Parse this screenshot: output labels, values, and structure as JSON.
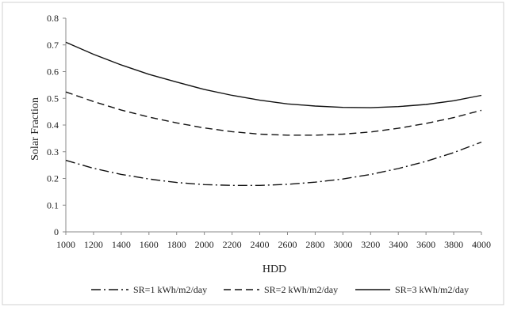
{
  "chart_data": {
    "type": "line",
    "xlabel": "HDD",
    "ylabel": "Solar Fraction",
    "xlim": [
      1000,
      4000
    ],
    "ylim": [
      0,
      0.8
    ],
    "x_ticks": [
      1000,
      1200,
      1400,
      1600,
      1800,
      2000,
      2200,
      2400,
      2600,
      2800,
      3000,
      3200,
      3400,
      3600,
      3800,
      4000
    ],
    "y_ticks": [
      0,
      0.1,
      0.2,
      0.3,
      0.4,
      0.5,
      0.6,
      0.7,
      0.8
    ],
    "grid": false,
    "legend": "bottom",
    "series": [
      {
        "name": "SR=1 kWh/m2/day",
        "style": "dashdot",
        "x": [
          1000,
          1200,
          1400,
          1600,
          1800,
          2000,
          2200,
          2400,
          2600,
          2800,
          3000,
          3200,
          3400,
          3600,
          3800,
          4000
        ],
        "y": [
          0.268,
          0.238,
          0.215,
          0.198,
          0.185,
          0.177,
          0.174,
          0.174,
          0.178,
          0.186,
          0.198,
          0.215,
          0.237,
          0.264,
          0.297,
          0.336
        ]
      },
      {
        "name": "SR=2 kWh/m2/day",
        "style": "dashed",
        "x": [
          1000,
          1200,
          1400,
          1600,
          1800,
          2000,
          2200,
          2400,
          2600,
          2800,
          3000,
          3200,
          3400,
          3600,
          3800,
          4000
        ],
        "y": [
          0.524,
          0.488,
          0.456,
          0.43,
          0.408,
          0.389,
          0.375,
          0.366,
          0.362,
          0.362,
          0.366,
          0.374,
          0.388,
          0.406,
          0.428,
          0.455
        ]
      },
      {
        "name": "SR=3 kWh/m2/day",
        "style": "solid",
        "x": [
          1000,
          1200,
          1400,
          1600,
          1800,
          2000,
          2200,
          2400,
          2600,
          2800,
          3000,
          3200,
          3400,
          3600,
          3800,
          4000
        ],
        "y": [
          0.71,
          0.665,
          0.625,
          0.59,
          0.561,
          0.533,
          0.511,
          0.493,
          0.479,
          0.471,
          0.466,
          0.465,
          0.469,
          0.477,
          0.491,
          0.511
        ]
      }
    ]
  }
}
